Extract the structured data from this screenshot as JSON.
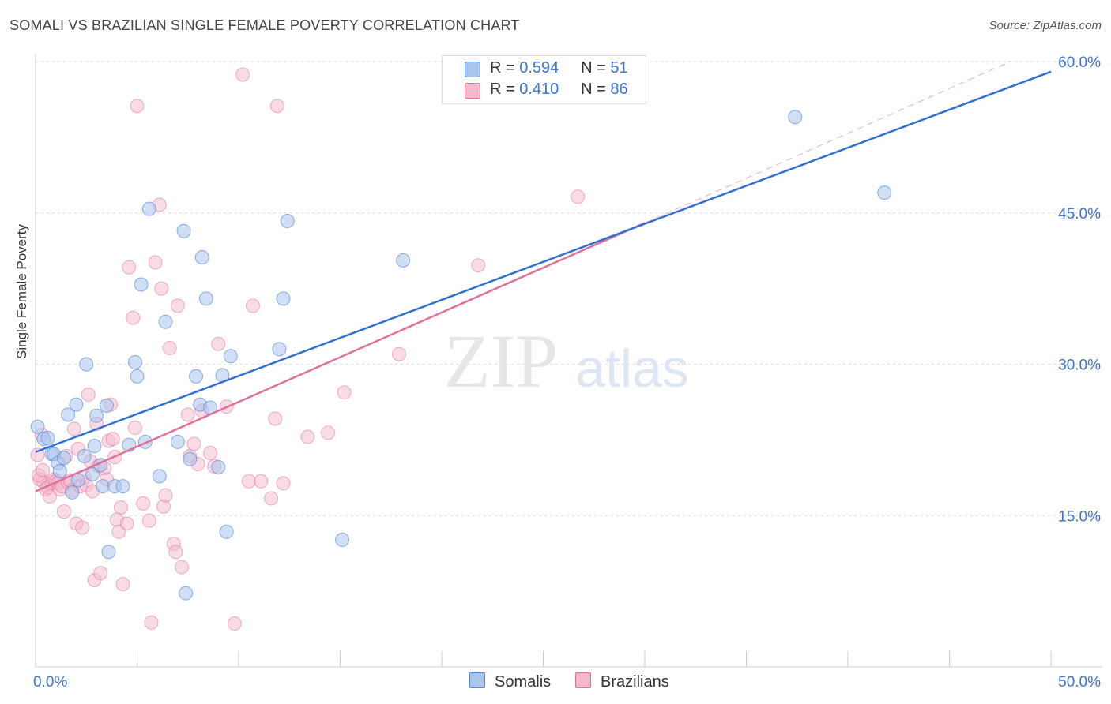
{
  "title": "SOMALI VS BRAZILIAN SINGLE FEMALE POVERTY CORRELATION CHART",
  "source": "Source: ZipAtlas.com",
  "watermark": {
    "zip": "ZIP",
    "atlas": "atlas"
  },
  "colors": {
    "somali": "#4f86d6",
    "somali_fill": "#a9c5ec",
    "brazilian": "#e0709a",
    "brazilian_fill": "#f4b8cb",
    "axis_label": "#3a74d0",
    "grid": "#d8d8d8"
  },
  "legend": {
    "somali": {
      "r_label": "R =",
      "r_value": "0.594",
      "n_label": "N =",
      "n_value": "51"
    },
    "brazilian": {
      "r_label": "R =",
      "r_value": "0.410",
      "n_label": "N =",
      "n_value": "86"
    }
  },
  "bottom_legend": {
    "somali": "Somalis",
    "brazilian": "Brazilians"
  },
  "chart_data": {
    "type": "scatter",
    "xlabel": "",
    "ylabel": "Single Female Poverty",
    "xlim": [
      0,
      50
    ],
    "ylim": [
      0,
      60
    ],
    "x_tick_labels": [
      "0.0%",
      "50.0%"
    ],
    "y_tick_labels": [
      "15.0%",
      "30.0%",
      "45.0%",
      "60.0%"
    ],
    "y_ticks": [
      15,
      30,
      45,
      60
    ],
    "series": [
      {
        "name": "Somalis",
        "r": 0.594,
        "n": 51,
        "trend": {
          "x0": 0,
          "y0": 21.3,
          "x1": 50,
          "y1": 59.0
        },
        "points": [
          [
            0.1,
            23.8
          ],
          [
            0.4,
            22.6
          ],
          [
            0.6,
            22.7
          ],
          [
            0.8,
            21.1
          ],
          [
            0.9,
            21.1
          ],
          [
            1.1,
            20.2
          ],
          [
            1.2,
            19.4
          ],
          [
            1.4,
            20.7
          ],
          [
            1.6,
            25.0
          ],
          [
            1.8,
            17.3
          ],
          [
            2.0,
            26.0
          ],
          [
            2.1,
            18.5
          ],
          [
            2.4,
            20.9
          ],
          [
            2.5,
            30.0
          ],
          [
            2.8,
            19.1
          ],
          [
            2.9,
            21.9
          ],
          [
            3.0,
            24.9
          ],
          [
            3.2,
            20.0
          ],
          [
            3.3,
            17.9
          ],
          [
            3.5,
            25.9
          ],
          [
            3.6,
            11.4
          ],
          [
            3.9,
            17.9
          ],
          [
            4.3,
            17.9
          ],
          [
            4.6,
            22.0
          ],
          [
            4.9,
            30.2
          ],
          [
            5.0,
            28.8
          ],
          [
            5.2,
            37.9
          ],
          [
            5.4,
            22.3
          ],
          [
            5.6,
            45.4
          ],
          [
            6.1,
            18.9
          ],
          [
            6.4,
            34.2
          ],
          [
            7.0,
            22.3
          ],
          [
            7.3,
            43.2
          ],
          [
            7.4,
            7.3
          ],
          [
            7.6,
            20.6
          ],
          [
            7.9,
            28.8
          ],
          [
            8.1,
            26.0
          ],
          [
            8.2,
            40.6
          ],
          [
            8.4,
            36.5
          ],
          [
            8.6,
            25.7
          ],
          [
            9.0,
            19.8
          ],
          [
            9.2,
            28.9
          ],
          [
            9.4,
            13.4
          ],
          [
            9.6,
            30.8
          ],
          [
            12.0,
            31.5
          ],
          [
            12.2,
            36.5
          ],
          [
            12.4,
            44.2
          ],
          [
            15.1,
            12.6
          ],
          [
            18.1,
            40.3
          ],
          [
            37.4,
            54.5
          ],
          [
            41.8,
            47.0
          ]
        ]
      },
      {
        "name": "Brazilians",
        "r": 0.41,
        "n": 86,
        "trend": {
          "x0": 0,
          "y0": 17.4,
          "x1": 30,
          "y1": 44.0
        },
        "dashed_extension": {
          "x0": 30,
          "y0": 44.0,
          "x1": 48,
          "y1": 60.0
        },
        "points": [
          [
            0.1,
            21.0
          ],
          [
            0.2,
            18.6
          ],
          [
            0.3,
            23.0
          ],
          [
            0.4,
            18.3
          ],
          [
            0.5,
            17.6
          ],
          [
            0.6,
            17.8
          ],
          [
            0.7,
            16.9
          ],
          [
            0.8,
            18.3
          ],
          [
            0.9,
            18.6
          ],
          [
            1.0,
            18.4
          ],
          [
            1.1,
            18.2
          ],
          [
            1.2,
            17.6
          ],
          [
            1.3,
            17.9
          ],
          [
            1.4,
            15.4
          ],
          [
            1.5,
            20.9
          ],
          [
            1.6,
            18.3
          ],
          [
            1.7,
            18.5
          ],
          [
            1.8,
            17.5
          ],
          [
            1.9,
            23.6
          ],
          [
            2.0,
            14.2
          ],
          [
            2.1,
            21.6
          ],
          [
            2.2,
            17.9
          ],
          [
            2.3,
            13.8
          ],
          [
            2.4,
            18.8
          ],
          [
            2.5,
            18.0
          ],
          [
            2.6,
            27.0
          ],
          [
            2.7,
            20.4
          ],
          [
            2.8,
            17.4
          ],
          [
            2.9,
            8.6
          ],
          [
            3.0,
            24.1
          ],
          [
            3.1,
            19.9
          ],
          [
            3.2,
            9.3
          ],
          [
            3.4,
            19.7
          ],
          [
            3.5,
            18.6
          ],
          [
            3.6,
            22.4
          ],
          [
            3.7,
            26.0
          ],
          [
            3.8,
            22.6
          ],
          [
            3.9,
            20.8
          ],
          [
            4.0,
            14.6
          ],
          [
            4.1,
            13.4
          ],
          [
            4.2,
            15.8
          ],
          [
            4.3,
            8.2
          ],
          [
            4.5,
            14.2
          ],
          [
            4.6,
            39.6
          ],
          [
            4.8,
            34.6
          ],
          [
            4.9,
            23.7
          ],
          [
            5.0,
            55.6
          ],
          [
            5.3,
            16.2
          ],
          [
            5.6,
            14.5
          ],
          [
            5.7,
            4.4
          ],
          [
            5.9,
            40.1
          ],
          [
            6.1,
            45.8
          ],
          [
            6.2,
            37.5
          ],
          [
            6.3,
            15.9
          ],
          [
            6.4,
            17.0
          ],
          [
            6.6,
            31.6
          ],
          [
            6.8,
            12.2
          ],
          [
            6.9,
            11.4
          ],
          [
            7.0,
            35.8
          ],
          [
            7.2,
            9.9
          ],
          [
            7.5,
            25.0
          ],
          [
            7.6,
            20.9
          ],
          [
            7.8,
            22.1
          ],
          [
            8.0,
            20.1
          ],
          [
            8.2,
            25.4
          ],
          [
            8.6,
            21.2
          ],
          [
            8.8,
            19.9
          ],
          [
            9.0,
            32.0
          ],
          [
            9.4,
            25.8
          ],
          [
            9.8,
            4.3
          ],
          [
            10.2,
            58.7
          ],
          [
            10.5,
            18.4
          ],
          [
            10.7,
            35.8
          ],
          [
            11.1,
            18.4
          ],
          [
            11.6,
            16.7
          ],
          [
            11.8,
            24.6
          ],
          [
            11.9,
            55.6
          ],
          [
            12.2,
            18.2
          ],
          [
            13.4,
            22.8
          ],
          [
            14.4,
            23.2
          ],
          [
            15.2,
            27.2
          ],
          [
            17.9,
            31.0
          ],
          [
            21.8,
            39.8
          ],
          [
            26.7,
            46.6
          ],
          [
            0.15,
            19.0
          ],
          [
            0.35,
            19.5
          ]
        ]
      }
    ]
  }
}
